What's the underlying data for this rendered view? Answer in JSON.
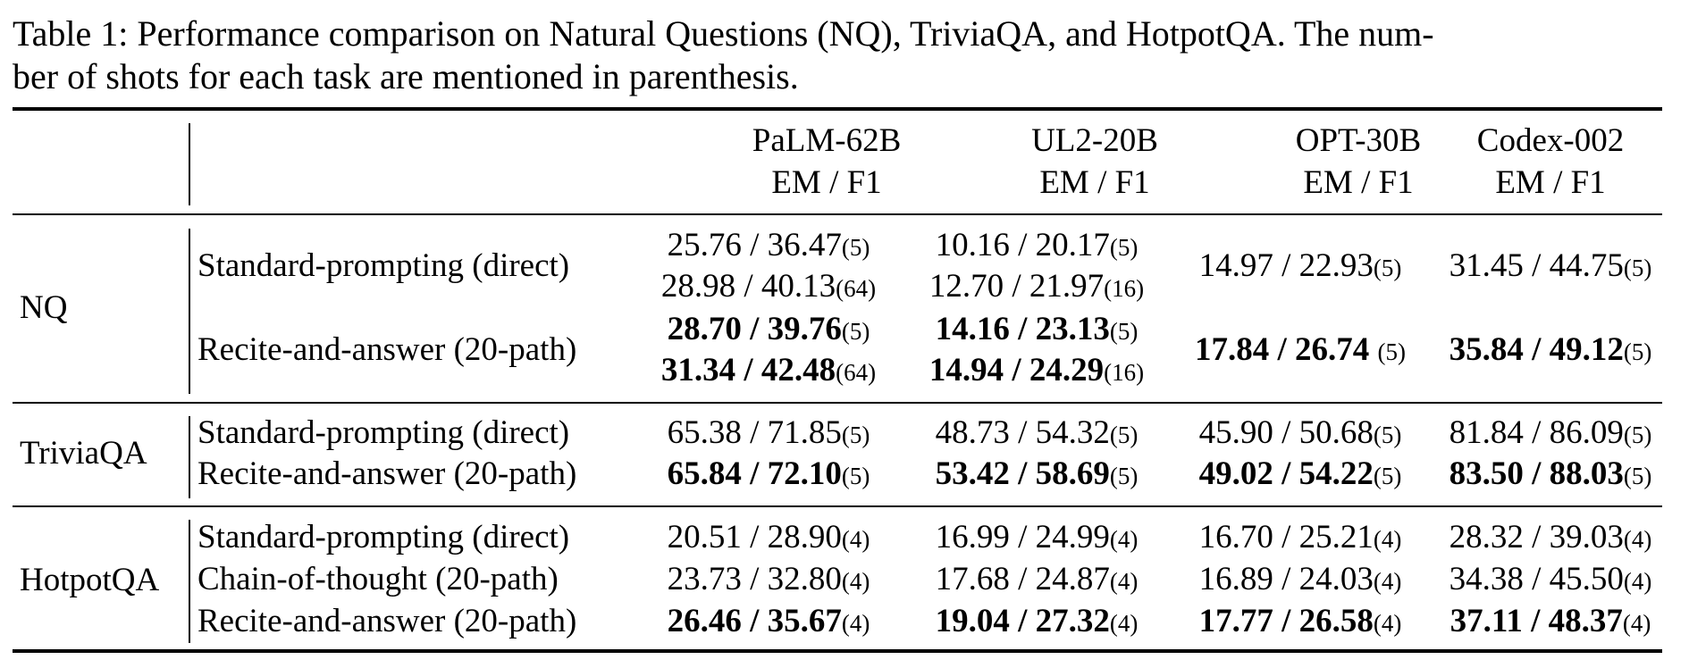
{
  "caption": "Table 1: Performance comparison on Natural Questions (NQ), TriviaQA, and HotpotQA. The number of shots for each task are mentioned in parenthesis.",
  "caption_lines": [
    "Table 1: Performance comparison on Natural Questions (NQ), TriviaQA, and HotpotQA. The num-",
    "ber of shots for each task are mentioned in parenthesis."
  ],
  "models": [
    {
      "name": "PaLM-62B",
      "metric": "EM / F1"
    },
    {
      "name": "UL2-20B",
      "metric": "EM / F1"
    },
    {
      "name": "OPT-30B",
      "metric": "EM / F1"
    },
    {
      "name": "Codex-002",
      "metric": "EM / F1"
    }
  ],
  "datasets": [
    "NQ",
    "TriviaQA",
    "HotpotQA"
  ],
  "methods": {
    "standard": "Standard-prompting (direct)",
    "recite": "Recite-and-answer (20-path)",
    "cot": "Chain-of-thought (20-path)"
  },
  "cells": {
    "nq_std_palm_a": {
      "v": "25.76 / 36.47",
      "s": "(5)"
    },
    "nq_std_palm_b": {
      "v": "28.98 / 40.13",
      "s": "(64)"
    },
    "nq_std_ul2_a": {
      "v": "10.16 / 20.17",
      "s": "(5)"
    },
    "nq_std_ul2_b": {
      "v": "12.70 / 21.97",
      "s": "(16)"
    },
    "nq_std_opt": {
      "v": "14.97 / 22.93",
      "s": "(5)"
    },
    "nq_std_codex": {
      "v": "31.45 / 44.75",
      "s": "(5)"
    },
    "nq_rec_palm_a": {
      "v": "28.70 / 39.76",
      "s": "(5)"
    },
    "nq_rec_palm_b": {
      "v": "31.34 / 42.48",
      "s": "(64)"
    },
    "nq_rec_ul2_a": {
      "v": "14.16 / 23.13",
      "s": "(5)"
    },
    "nq_rec_ul2_b": {
      "v": "14.94 / 24.29",
      "s": "(16)"
    },
    "nq_rec_opt": {
      "v": "17.84 / 26.74",
      "s": "(5)"
    },
    "nq_rec_codex": {
      "v": "35.84 / 49.12",
      "s": "(5)"
    },
    "tq_std_palm": {
      "v": "65.38 / 71.85",
      "s": "(5)"
    },
    "tq_std_ul2": {
      "v": "48.73 / 54.32",
      "s": "(5)"
    },
    "tq_std_opt": {
      "v": "45.90 / 50.68",
      "s": "(5)"
    },
    "tq_std_codex": {
      "v": "81.84 / 86.09",
      "s": "(5)"
    },
    "tq_rec_palm": {
      "v": "65.84 / 72.10",
      "s": "(5)"
    },
    "tq_rec_ul2": {
      "v": "53.42 / 58.69",
      "s": "(5)"
    },
    "tq_rec_opt": {
      "v": "49.02 / 54.22",
      "s": "(5)"
    },
    "tq_rec_codex": {
      "v": "83.50 / 88.03",
      "s": "(5)"
    },
    "hq_std_palm": {
      "v": "20.51 / 28.90",
      "s": "(4)"
    },
    "hq_std_ul2": {
      "v": "16.99 / 24.99",
      "s": "(4)"
    },
    "hq_std_opt": {
      "v": "16.70 / 25.21",
      "s": "(4)"
    },
    "hq_std_codex": {
      "v": "28.32 / 39.03",
      "s": "(4)"
    },
    "hq_cot_palm": {
      "v": "23.73 / 32.80",
      "s": "(4)"
    },
    "hq_cot_ul2": {
      "v": "17.68 / 24.87",
      "s": "(4)"
    },
    "hq_cot_opt": {
      "v": "16.89 / 24.03",
      "s": "(4)"
    },
    "hq_cot_codex": {
      "v": "34.38 / 45.50",
      "s": "(4)"
    },
    "hq_rec_palm": {
      "v": "26.46 / 35.67",
      "s": "(4)"
    },
    "hq_rec_ul2": {
      "v": "19.04 / 27.32",
      "s": "(4)"
    },
    "hq_rec_opt": {
      "v": "17.77 / 26.58",
      "s": "(4)"
    },
    "hq_rec_codex": {
      "v": "37.11 / 48.37",
      "s": "(4)"
    }
  }
}
